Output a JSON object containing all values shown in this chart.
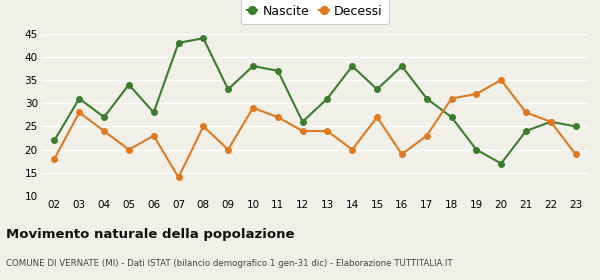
{
  "years": [
    "02",
    "03",
    "04",
    "05",
    "06",
    "07",
    "08",
    "09",
    "10",
    "11",
    "12",
    "13",
    "14",
    "15",
    "16",
    "17",
    "18",
    "19",
    "20",
    "21",
    "22",
    "23"
  ],
  "nascite": [
    22,
    31,
    27,
    34,
    28,
    43,
    44,
    33,
    38,
    37,
    26,
    31,
    38,
    33,
    38,
    31,
    27,
    20,
    17,
    24,
    26,
    25
  ],
  "decessi": [
    18,
    28,
    24,
    20,
    23,
    14,
    25,
    20,
    29,
    27,
    24,
    24,
    20,
    27,
    19,
    23,
    31,
    32,
    35,
    28,
    26,
    19
  ],
  "nascite_color": "#3a7d2c",
  "decessi_color": "#e07820",
  "bg_color": "#f0f0e8",
  "grid_color": "#ffffff",
  "ylim": [
    10,
    45
  ],
  "yticks": [
    10,
    15,
    20,
    25,
    30,
    35,
    40,
    45
  ],
  "title": "Movimento naturale della popolazione",
  "subtitle": "COMUNE DI VERNATE (MI) - Dati ISTAT (bilancio demografico 1 gen-31 dic) - Elaborazione TUTTITALIA.IT",
  "legend_nascite": "Nascite",
  "legend_decessi": "Decessi",
  "marker_size": 4,
  "line_width": 1.5
}
